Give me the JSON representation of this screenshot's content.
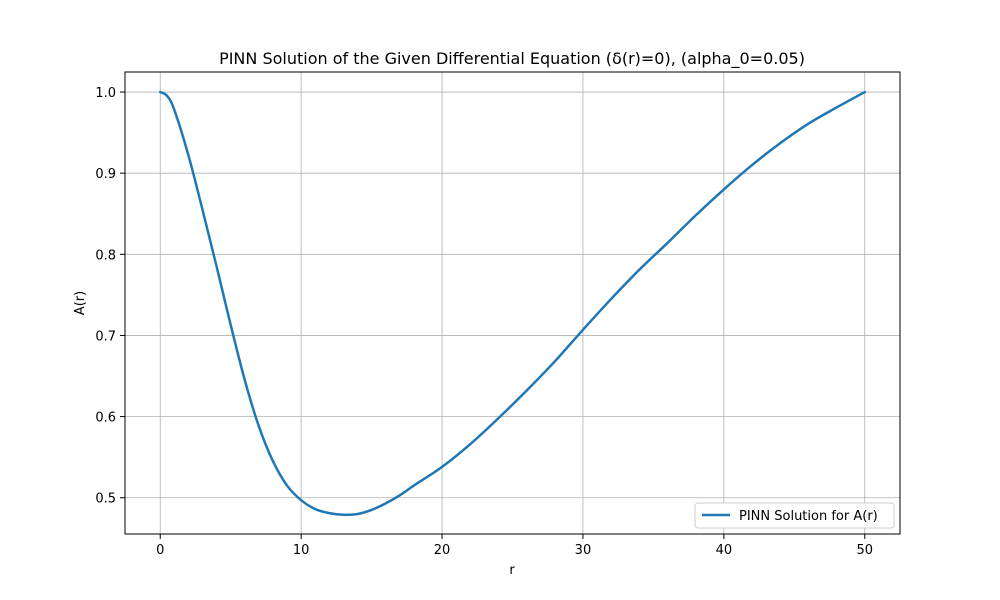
{
  "chart_data": {
    "type": "line",
    "title": "PINN Solution of the Given Differential Equation (δ(r)=0), (alpha_0=0.05)",
    "xlabel": "r",
    "ylabel": "A(r)",
    "xlim": [
      -2.5,
      52.5
    ],
    "ylim": [
      0.4553,
      1.0247
    ],
    "grid": true,
    "legend_position": "lower-right",
    "x_ticks": [
      0,
      10,
      20,
      30,
      40,
      50
    ],
    "x_tick_labels": [
      "0",
      "10",
      "20",
      "30",
      "40",
      "50"
    ],
    "y_ticks": [
      0.5,
      0.6,
      0.7,
      0.8,
      0.9,
      1.0
    ],
    "y_tick_labels": [
      "0.5",
      "0.6",
      "0.7",
      "0.8",
      "0.9",
      "1.0"
    ],
    "series": [
      {
        "name": "PINN Solution for A(r)",
        "color": "#1f77b4",
        "x": [
          0,
          0.5,
          1,
          2,
          3,
          4,
          5,
          6,
          7,
          8,
          9,
          10,
          11,
          12,
          13,
          14,
          15,
          16,
          17,
          18,
          20,
          22,
          24,
          26,
          28,
          30,
          32,
          34,
          36,
          38,
          40,
          42,
          44,
          46,
          48,
          50
        ],
        "y": [
          1.0,
          0.995,
          0.978,
          0.922,
          0.855,
          0.785,
          0.713,
          0.645,
          0.588,
          0.545,
          0.515,
          0.497,
          0.486,
          0.481,
          0.479,
          0.48,
          0.485,
          0.493,
          0.503,
          0.515,
          0.538,
          0.566,
          0.598,
          0.632,
          0.668,
          0.707,
          0.745,
          0.781,
          0.814,
          0.848,
          0.88,
          0.91,
          0.937,
          0.961,
          0.981,
          1.0
        ]
      }
    ]
  }
}
